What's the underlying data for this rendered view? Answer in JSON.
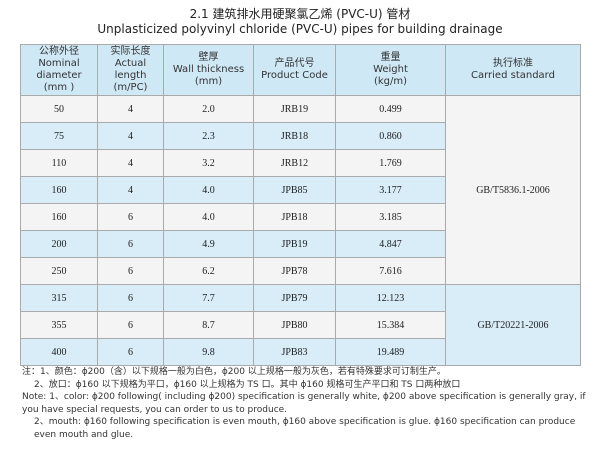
{
  "title": {
    "zh": "2.1 建筑排水用硬聚氯乙烯 (PVC-U) 管材",
    "en": "Unplasticized polyvinyl chloride (PVC-U) pipes for building drainage"
  },
  "table": {
    "headers": [
      [
        "公称外径",
        "Nominal diameter",
        "(mm )"
      ],
      [
        "实际长度",
        "Actual length",
        "(m/PC)"
      ],
      [
        "壁厚",
        "Wall thickness",
        "(mm)"
      ],
      [
        "产品代号",
        "Product Code"
      ],
      [
        "重量",
        "Weight",
        "(kg/m)"
      ],
      [
        "执行标准",
        "Carried standard"
      ]
    ],
    "groups": [
      {
        "standard": "GB/T5836.1-2006",
        "rows": [
          [
            "50",
            "4",
            "2.0",
            "JRB19",
            "0.499"
          ],
          [
            "75",
            "4",
            "2.3",
            "JRB18",
            "0.860"
          ],
          [
            "110",
            "4",
            "3.2",
            "JRB12",
            "1.769"
          ],
          [
            "160",
            "4",
            "4.0",
            "JPB85",
            "3.177"
          ],
          [
            "160",
            "6",
            "4.0",
            "JPB18",
            "3.185"
          ],
          [
            "200",
            "6",
            "4.9",
            "JPB19",
            "4.847"
          ],
          [
            "250",
            "6",
            "6.2",
            "JPB78",
            "7.616"
          ]
        ]
      },
      {
        "standard": "GB/T20221-2006",
        "rows": [
          [
            "315",
            "6",
            "7.7",
            "JPB79",
            "12.123"
          ],
          [
            "355",
            "6",
            "8.7",
            "JPB80",
            "15.384"
          ],
          [
            "400",
            "6",
            "9.8",
            "JPB83",
            "19.489"
          ]
        ]
      }
    ]
  },
  "notes": [
    "注：1、颜色：ϕ200（含）以下规格一般为白色，ϕ200 以上规格一般为灰色，若有特殊要求可订制生产。",
    "2、放口：ϕ160 以下规格为平口，ϕ160 以上规格为 TS 口。其中 ϕ160 规格可生产平口和 TS 口两种放口",
    "Note: 1、color: ϕ200 following( including ϕ200) specification is generally white, ϕ200 above specification is generally gray, if you have special requests, you can order to us to produce.",
    "2、mouth: ϕ160 following specification is even mouth, ϕ160 above specification is glue. ϕ160 specification can produce even mouth and glue."
  ]
}
